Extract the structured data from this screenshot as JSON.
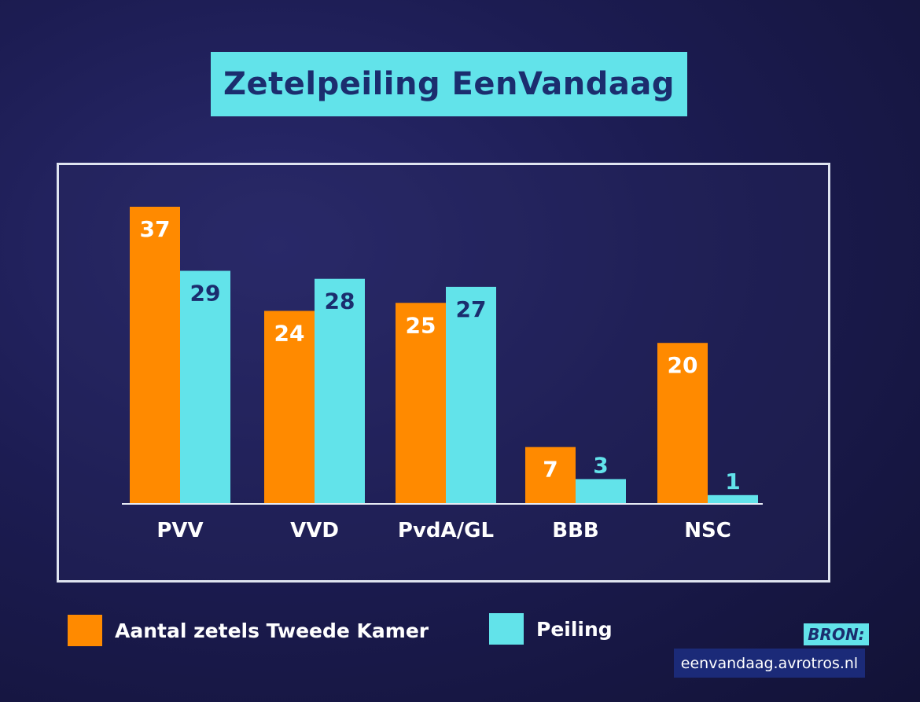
{
  "chart_data": {
    "type": "bar",
    "title": "Zetelpeiling EenVandaag",
    "categories": [
      "PVV",
      "VVD",
      "PvdA/GL",
      "BBB",
      "NSC"
    ],
    "series": [
      {
        "name": "Aantal zetels Tweede Kamer",
        "color": "#ff8a00",
        "values": [
          37,
          24,
          25,
          7,
          20
        ]
      },
      {
        "name": "Peiling",
        "color": "#62e3ea",
        "values": [
          29,
          28,
          27,
          3,
          1
        ]
      }
    ],
    "ylim": [
      0,
      37
    ],
    "grid": false,
    "legend": "bottom-left",
    "label_colors": {
      "orange_bar": "#ffffff",
      "cyan_bar": "#1b2d6e",
      "above_bar": "#62e3ea"
    }
  },
  "source": {
    "label": "BRON:",
    "url": "eenvandaag.avrotros.nl"
  }
}
